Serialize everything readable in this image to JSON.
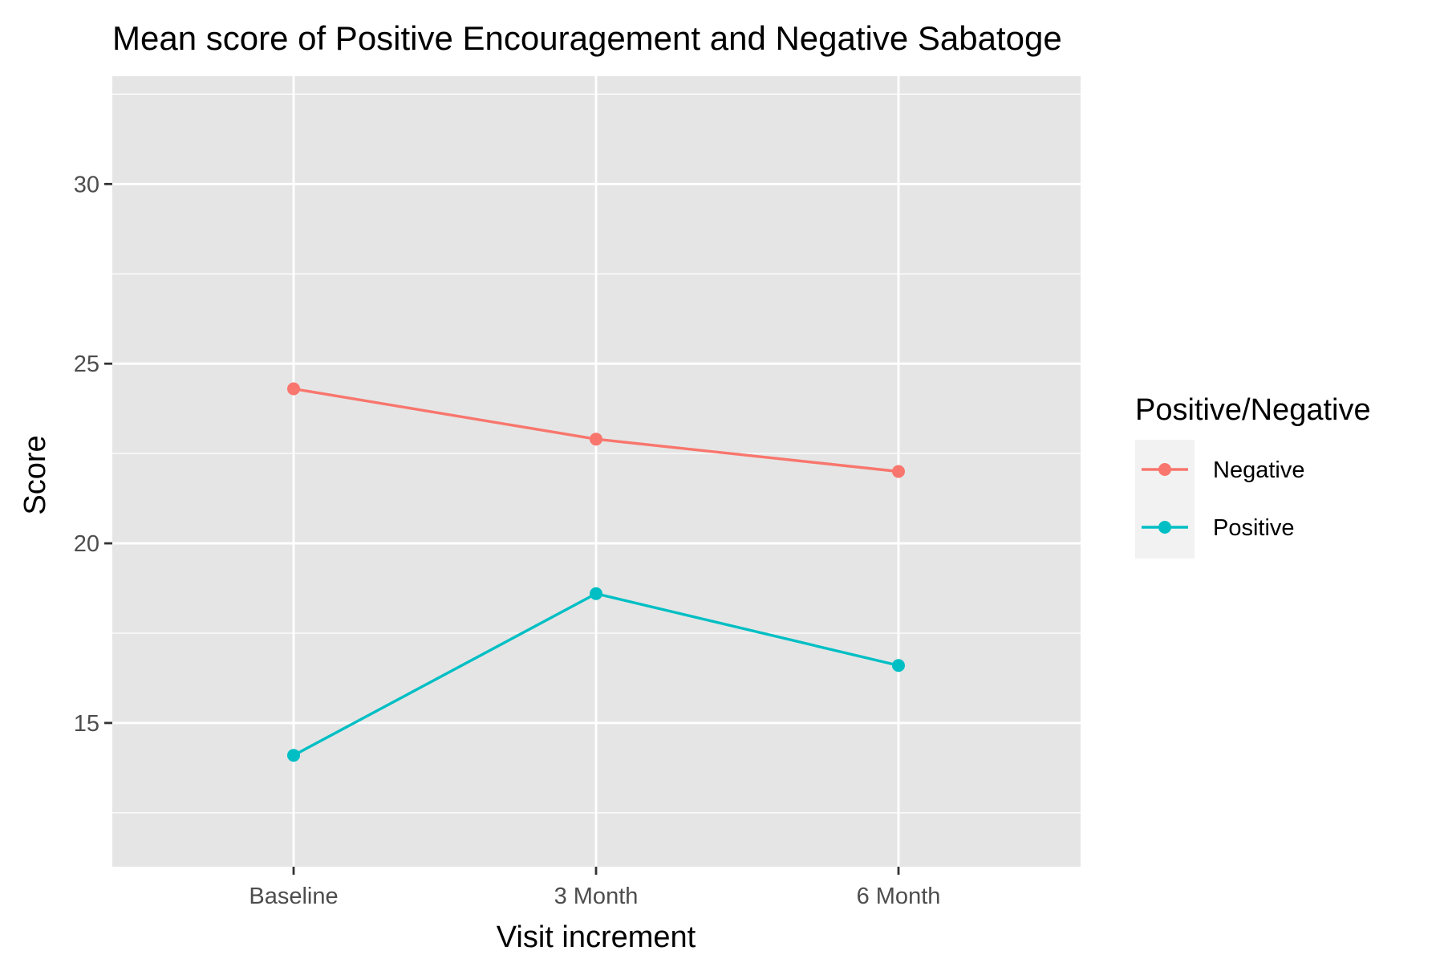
{
  "chart_data": {
    "type": "line",
    "title": "Mean score of Positive Encouragement and Negative Sabatoge",
    "xlabel": "Visit increment",
    "ylabel": "Score",
    "categories": [
      "Baseline",
      "3 Month",
      "6 Month"
    ],
    "ylim": [
      11,
      33
    ],
    "yticks": [
      15,
      20,
      25,
      30
    ],
    "ytick_labels": [
      "15",
      "20",
      "25",
      "30"
    ],
    "grid": true,
    "legend": {
      "title": "Positive/Negative",
      "position": "right"
    },
    "series": [
      {
        "name": "Negative",
        "values": [
          24.3,
          22.9,
          22.0
        ],
        "color": "#F8766D"
      },
      {
        "name": "Positive",
        "values": [
          14.1,
          18.6,
          16.6
        ],
        "color": "#00BFC4"
      }
    ],
    "panel_background": "#E5E5E5",
    "grid_color": "#FFFFFF"
  }
}
